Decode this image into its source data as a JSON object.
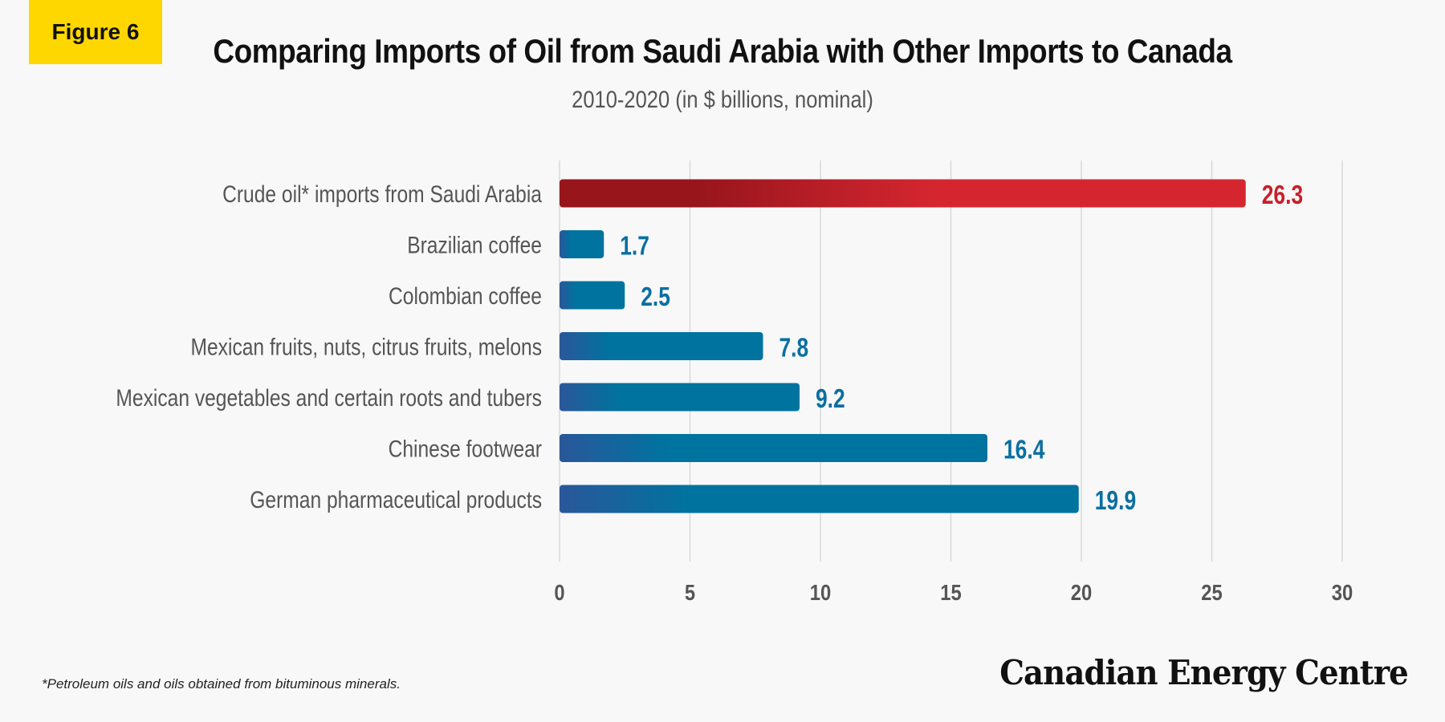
{
  "badge": "Figure 6",
  "footnote": "*Petroleum oils and oils obtained from bituminous minerals.",
  "logo": "Canadian Energy Centre",
  "colors": {
    "highlight_dark": "#98151c",
    "highlight_light": "#d52630",
    "bar_dark": "#2a579a",
    "bar_light": "#00739f",
    "label_blue": "#0a6fa1",
    "label_red": "#c8202a",
    "grid": "#d9d9d9",
    "badge": "#ffd700"
  },
  "chart_data": {
    "type": "bar",
    "orientation": "horizontal",
    "title": "Comparing Imports of Oil from Saudi Arabia with Other Imports to Canada",
    "subtitle": "2010-2020 (in $ billions, nominal)",
    "categories": [
      "Crude oil* imports from Saudi Arabia",
      "Brazilian coffee",
      "Colombian coffee",
      "Mexican fruits, nuts, citrus fruits, melons",
      "Mexican vegetables and certain roots and tubers",
      "Chinese footwear",
      "German pharmaceutical products"
    ],
    "values": [
      26.3,
      1.7,
      2.5,
      7.8,
      9.2,
      16.4,
      19.9
    ],
    "value_labels": [
      "26.3",
      "1.7",
      "2.5",
      "7.8",
      "9.2",
      "16.4",
      "19.9"
    ],
    "highlight_index": 0,
    "xlim": [
      0,
      30
    ],
    "xticks": [
      0,
      5,
      10,
      15,
      20,
      25,
      30
    ],
    "xtick_labels": [
      "0",
      "5",
      "10",
      "15",
      "20",
      "25",
      "30"
    ],
    "grid": true
  }
}
